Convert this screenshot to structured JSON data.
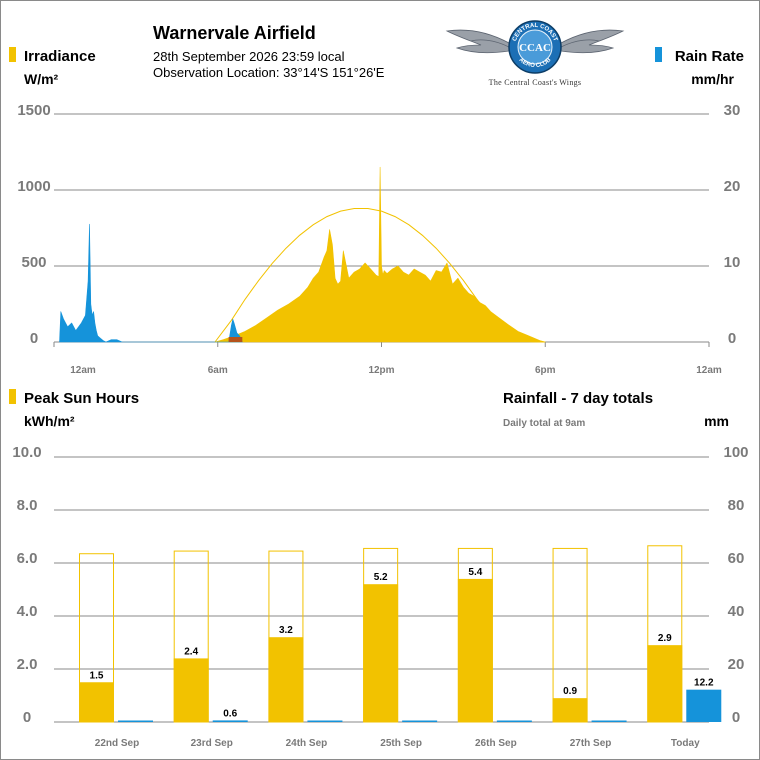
{
  "header": {
    "title": "Warnervale Airfield",
    "datetime": "28th September 2026  23:59 local",
    "location": "Observation Location:  33°14'S 151°26'E",
    "logo": {
      "ring_text": "CENTRAL COAST AERO CLUB",
      "letters": "CCAC",
      "tagline": "The Central Coast's Wings",
      "icon": "winged-roundel-logo"
    }
  },
  "colors": {
    "irradiance": "#f2c200",
    "rain": "#1593da",
    "clear_sky": "#f2c200",
    "overlap": "#b5531c",
    "grid": "#8a8a8a",
    "tick_text": "#7a7a7a"
  },
  "top_chart": {
    "left_legend": {
      "label": "Irradiance",
      "unit": "W/m²",
      "swatch": "#f2c200"
    },
    "right_legend": {
      "label": "Rain Rate",
      "unit": "mm/hr",
      "swatch": "#1593da"
    },
    "left_ticks": [
      "1500",
      "1000",
      "500",
      "0"
    ],
    "right_ticks": [
      "30",
      "20",
      "10",
      "0"
    ],
    "x_ticks": [
      "12am",
      "6am",
      "12pm",
      "6pm",
      "12am"
    ]
  },
  "bottom_chart": {
    "left_legend": {
      "label": "Peak Sun Hours",
      "unit": "kWh/m²",
      "swatch": "#f2c200"
    },
    "right_title": "Rainfall - 7 day totals",
    "right_note": "Daily total at 9am",
    "right_unit": "mm",
    "left_ticks": [
      "10.0",
      "8.0",
      "6.0",
      "4.0",
      "2.0",
      "0"
    ],
    "right_ticks": [
      "100",
      "80",
      "60",
      "40",
      "20",
      "0"
    ]
  },
  "chart_data": [
    {
      "type": "area",
      "x_unit": "hour",
      "xlim": [
        0,
        24
      ],
      "x_ticks": [
        "12am",
        "6am",
        "12pm",
        "6pm",
        "12am"
      ],
      "y_left": {
        "label": "Irradiance",
        "unit": "W/m²",
        "ylim": [
          0,
          1500
        ]
      },
      "y_right": {
        "label": "Rain Rate",
        "unit": "mm/hr",
        "ylim": [
          0,
          30
        ]
      },
      "grid": true,
      "series": [
        {
          "name": "Irradiance",
          "axis": "left",
          "style": "filled-area",
          "color": "#f2c200",
          "x": [
            5.9,
            6.2,
            6.6,
            7.0,
            7.4,
            7.8,
            8.2,
            8.6,
            9.0,
            9.3,
            9.5,
            9.7,
            9.9,
            10.0,
            10.1,
            10.2,
            10.3,
            10.4,
            10.5,
            10.6,
            10.8,
            11.0,
            11.2,
            11.4,
            11.6,
            11.8,
            11.9,
            11.95,
            12.0,
            12.05,
            12.1,
            12.2,
            12.4,
            12.6,
            12.8,
            13.0,
            13.2,
            13.4,
            13.6,
            13.8,
            14.0,
            14.2,
            14.4,
            14.6,
            14.8,
            15.0,
            15.2,
            15.4,
            15.6,
            15.8,
            16.0,
            16.3,
            16.6,
            17.0,
            17.4,
            17.8,
            18.0
          ],
          "y": [
            0,
            15,
            40,
            70,
            110,
            160,
            210,
            250,
            300,
            360,
            420,
            460,
            560,
            600,
            740,
            640,
            420,
            380,
            400,
            600,
            420,
            460,
            480,
            520,
            480,
            440,
            430,
            1150,
            500,
            440,
            470,
            450,
            480,
            500,
            460,
            440,
            480,
            460,
            440,
            400,
            470,
            460,
            520,
            380,
            420,
            360,
            320,
            300,
            260,
            240,
            200,
            160,
            120,
            70,
            40,
            10,
            0
          ]
        },
        {
          "name": "Clear sky irradiance",
          "axis": "left",
          "style": "line",
          "color": "#f2c200",
          "x": [
            5.9,
            6.5,
            7.0,
            7.5,
            8.0,
            8.5,
            9.0,
            9.5,
            10.0,
            10.5,
            11.0,
            11.5,
            12.0,
            12.5,
            13.0,
            13.5,
            14.0,
            14.5,
            15.0,
            15.5,
            16.0,
            16.5,
            17.0,
            17.5,
            18.0
          ],
          "y": [
            0,
            143,
            280,
            405,
            518,
            617,
            702,
            772,
            825,
            861,
            878,
            878,
            861,
            825,
            772,
            702,
            617,
            518,
            405,
            280,
            143,
            45,
            10,
            2,
            0
          ]
        },
        {
          "name": "Rain Rate",
          "axis": "right",
          "style": "filled-area",
          "color": "#1593da",
          "x": [
            0.2,
            0.25,
            0.35,
            0.5,
            0.65,
            0.8,
            1.0,
            1.15,
            1.25,
            1.3,
            1.35,
            1.4,
            1.45,
            1.5,
            1.55,
            1.6,
            1.7,
            1.8,
            1.9,
            2.1,
            2.3,
            2.5,
            6.4,
            6.5,
            6.55,
            6.6,
            6.7,
            6.8,
            6.9
          ],
          "y": [
            0,
            4,
            3,
            2,
            2.5,
            1.5,
            2.5,
            3.5,
            8,
            15.5,
            5,
            3.5,
            4,
            2.5,
            1.5,
            0.8,
            0.5,
            0.2,
            0,
            0.3,
            0.3,
            0,
            0,
            2.2,
            3,
            2.5,
            1.2,
            0.8,
            0
          ]
        }
      ]
    },
    {
      "type": "bar",
      "categories": [
        "22nd Sep",
        "23rd Sep",
        "24th Sep",
        "25th Sep",
        "26th Sep",
        "27th Sep",
        "Today"
      ],
      "y_left": {
        "label": "Peak Sun Hours",
        "unit": "kWh/m²",
        "ylim": [
          0,
          10
        ]
      },
      "y_right": {
        "label": "Rainfall - 7 day totals",
        "unit": "mm",
        "ylim": [
          0,
          100
        ]
      },
      "grid": true,
      "series": [
        {
          "name": "Peak Sun Hours",
          "axis": "left",
          "color": "#f2c200",
          "values": [
            1.5,
            2.4,
            3.2,
            5.2,
            5.4,
            0.9,
            2.9
          ],
          "labels": [
            "1.5",
            "2.4",
            "3.2",
            "5.2",
            "5.4",
            "0.9",
            "2.9"
          ]
        },
        {
          "name": "Clear sky peak sun hours",
          "axis": "left",
          "style": "outline",
          "color": "#f2c200",
          "values": [
            6.35,
            6.45,
            6.45,
            6.55,
            6.55,
            6.55,
            6.65
          ]
        },
        {
          "name": "Rainfall",
          "axis": "right",
          "color": "#1593da",
          "values": [
            0,
            0.6,
            0,
            0,
            0,
            0,
            12.2
          ],
          "labels": [
            "",
            "0.6",
            "",
            "",
            "",
            "",
            "12.2"
          ]
        }
      ]
    }
  ]
}
